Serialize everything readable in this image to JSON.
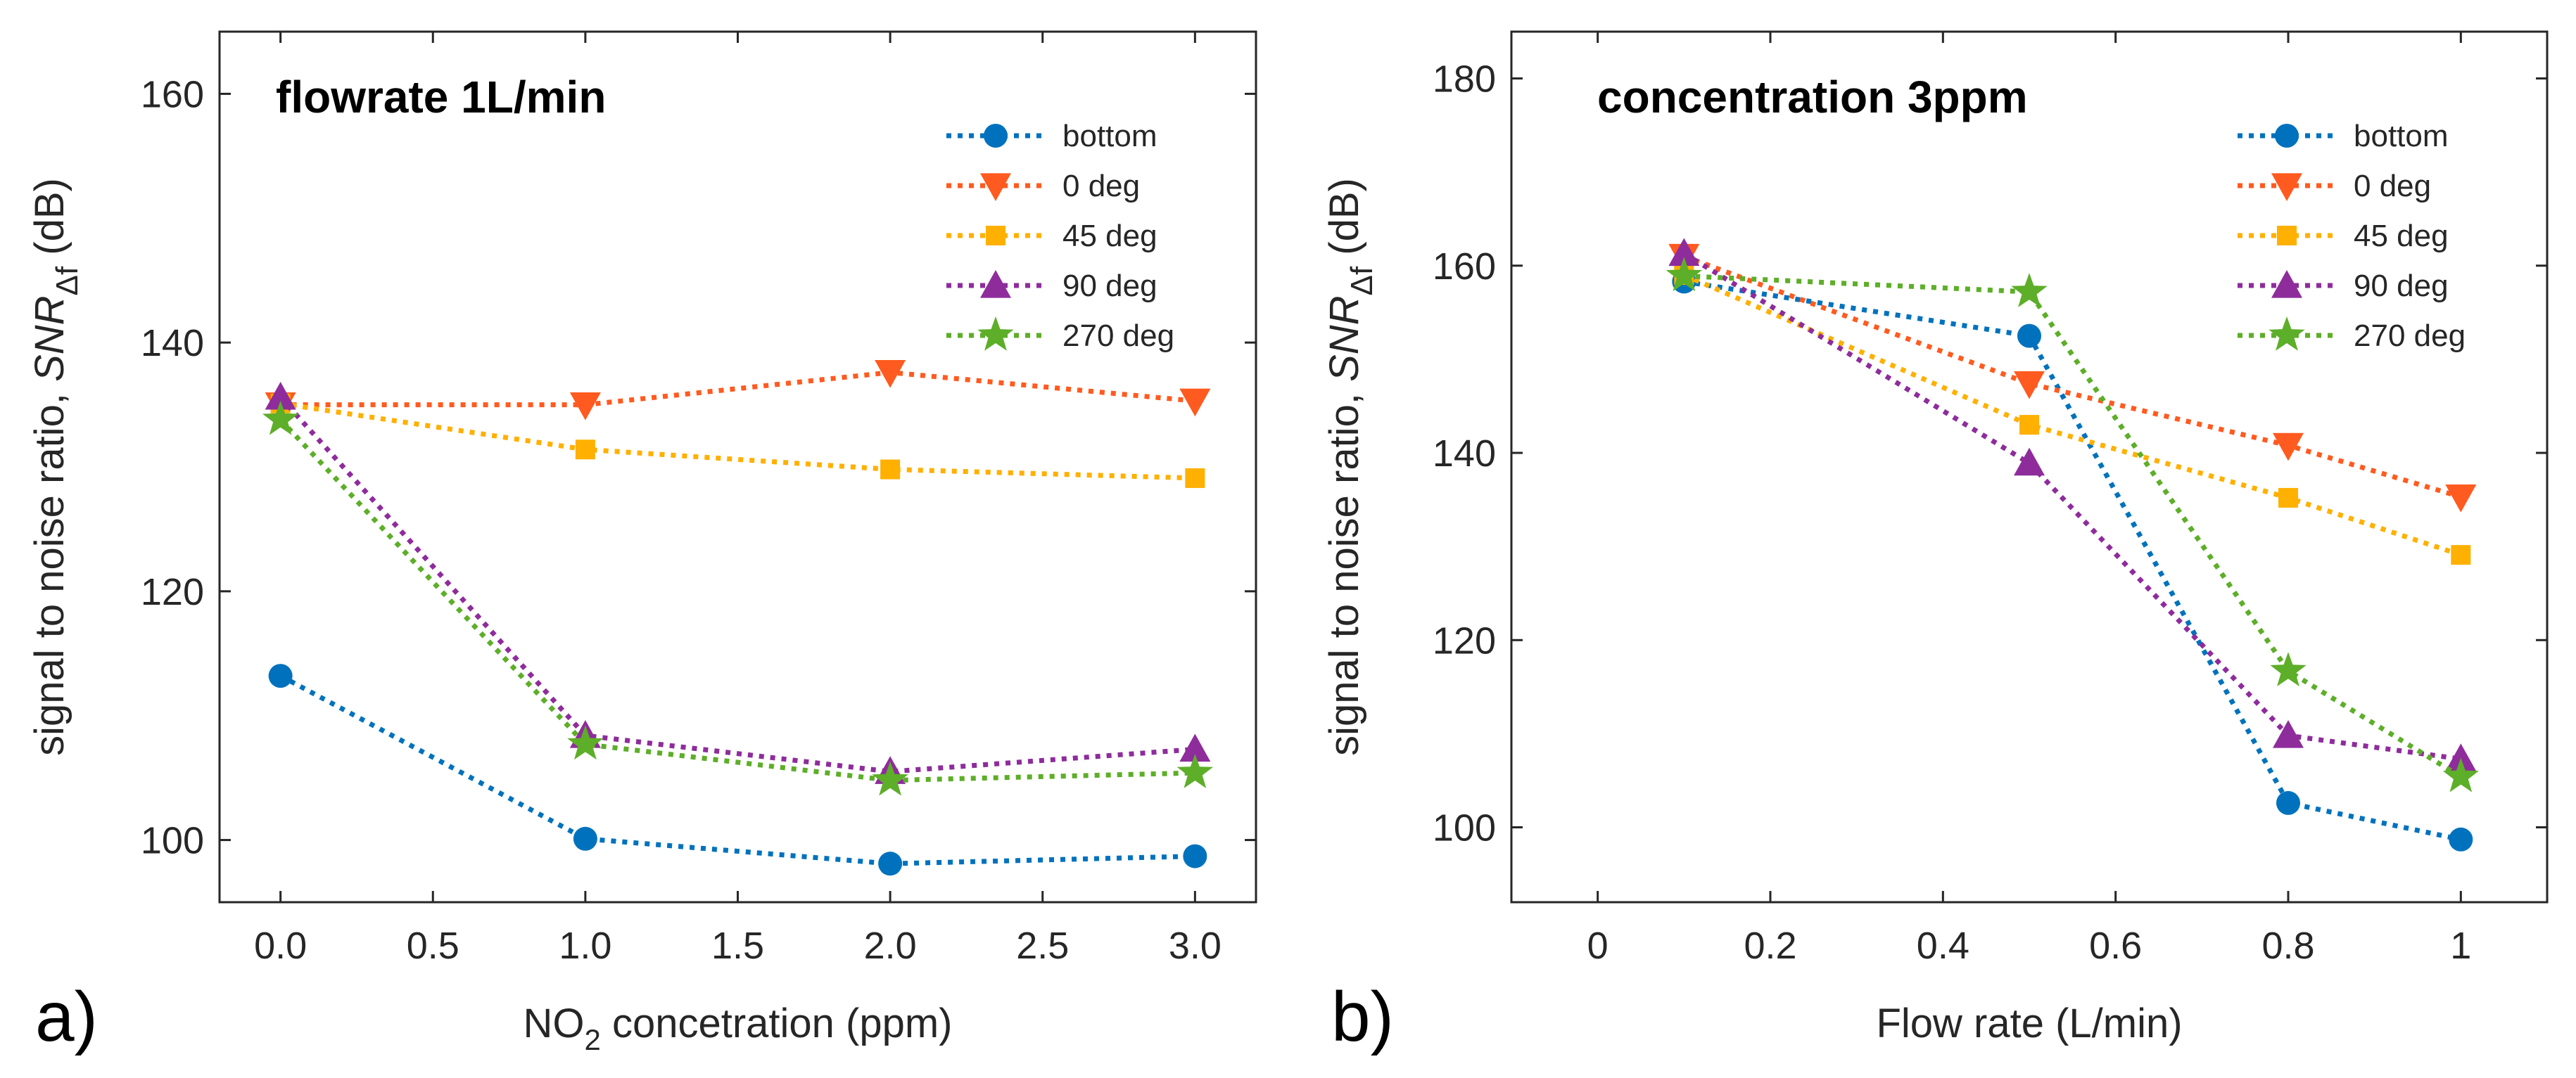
{
  "colors": {
    "bottom": "#0072BD",
    "0 deg": "#FF5A1F",
    "45 deg": "#FFB000",
    "90 deg": "#8E2C9C",
    "270 deg": "#5DAE28"
  },
  "chart_data": [
    {
      "type": "line",
      "panel": "a)",
      "title": "flowrate 1L/min",
      "xlabel_main": "NO",
      "xlabel_sub": "2",
      "xlabel_rest": " concetration (ppm)",
      "ylabel_main": "signal to noise ratio, ",
      "ylabel_italic": "SNR",
      "ylabel_sub": "Δf",
      "ylabel_unit": " (dB)",
      "xlim": [
        -0.2,
        3.2
      ],
      "ylim": [
        95,
        165
      ],
      "xticks": [
        0.0,
        0.5,
        1.0,
        1.5,
        2.0,
        2.5,
        3.0
      ],
      "xtick_labels": [
        "0.0",
        "0.5",
        "1.0",
        "1.5",
        "2.0",
        "2.5",
        "3.0"
      ],
      "yticks": [
        100,
        120,
        140,
        160
      ],
      "ytick_labels": [
        "100",
        "120",
        "140",
        "160"
      ],
      "x": [
        0,
        1,
        2,
        3
      ],
      "series": [
        {
          "name": "bottom",
          "marker": "circle",
          "values": [
            113.2,
            100.1,
            98.1,
            98.7
          ]
        },
        {
          "name": "0 deg",
          "marker": "triangle-down",
          "values": [
            135.0,
            135.0,
            137.6,
            135.3
          ]
        },
        {
          "name": "45 deg",
          "marker": "square",
          "values": [
            135.1,
            131.4,
            129.8,
            129.1
          ]
        },
        {
          "name": "90 deg",
          "marker": "triangle-up",
          "values": [
            135.6,
            108.4,
            105.5,
            107.3
          ]
        },
        {
          "name": "270 deg",
          "marker": "star",
          "values": [
            133.8,
            107.7,
            104.8,
            105.4
          ]
        }
      ]
    },
    {
      "type": "line",
      "panel": "b)",
      "title": "concentration 3ppm",
      "xlabel_main": "Flow rate (L/min)",
      "ylabel_main": "signal to noise ratio, ",
      "ylabel_italic": "SNR",
      "ylabel_sub": "Δf",
      "ylabel_unit": " (dB)",
      "xlim": [
        -0.1,
        1.1
      ],
      "ylim": [
        92,
        185
      ],
      "xticks": [
        0,
        0.2,
        0.4,
        0.6,
        0.8,
        1
      ],
      "xtick_labels": [
        "0",
        "0.2",
        "0.4",
        "0.6",
        "0.8",
        "1"
      ],
      "yticks": [
        100,
        120,
        140,
        160,
        180
      ],
      "ytick_labels": [
        "100",
        "120",
        "140",
        "160",
        "180"
      ],
      "x": [
        0.1,
        0.5,
        0.8,
        1.0
      ],
      "series": [
        {
          "name": "bottom",
          "marker": "circle",
          "values": [
            158.3,
            152.5,
            102.6,
            98.7
          ]
        },
        {
          "name": "0 deg",
          "marker": "triangle-down",
          "values": [
            161.0,
            147.4,
            140.8,
            135.3
          ]
        },
        {
          "name": "45 deg",
          "marker": "square",
          "values": [
            159.0,
            143.0,
            135.2,
            129.1
          ]
        },
        {
          "name": "90 deg",
          "marker": "triangle-up",
          "values": [
            161.3,
            138.9,
            109.8,
            107.3
          ]
        },
        {
          "name": "270 deg",
          "marker": "star",
          "values": [
            158.9,
            157.2,
            116.7,
            105.4
          ]
        }
      ]
    }
  ]
}
